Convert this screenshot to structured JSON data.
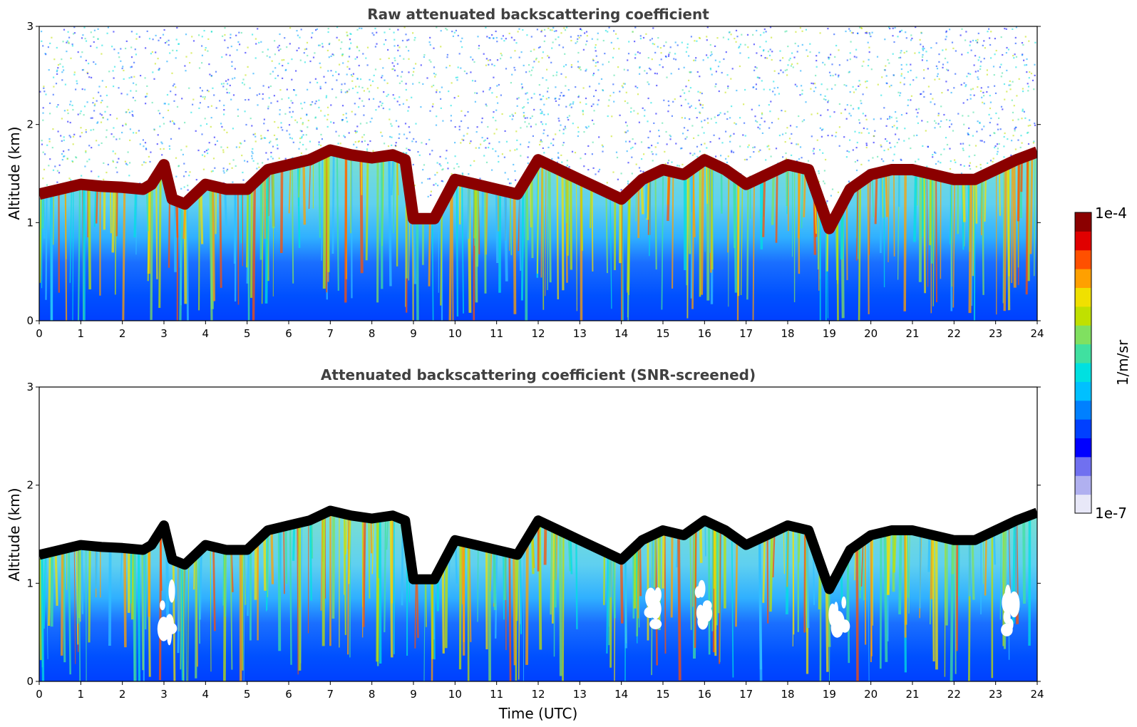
{
  "chart_data": [
    {
      "type": "heatmap",
      "title": "Raw attenuated backscattering coefficient",
      "xlabel": "",
      "ylabel": "Altitude (km)",
      "xlim": [
        0,
        24
      ],
      "ylim": [
        0,
        3
      ],
      "xticks": [
        "0",
        "1",
        "2",
        "3",
        "4",
        "5",
        "6",
        "7",
        "8",
        "9",
        "10",
        "11",
        "12",
        "13",
        "14",
        "15",
        "16",
        "17",
        "18",
        "19",
        "20",
        "21",
        "22",
        "23",
        "24"
      ],
      "yticks": [
        "0",
        "1",
        "2",
        "3"
      ],
      "screened": false,
      "layer_top_km": {
        "x": [
          0,
          0.5,
          1,
          1.5,
          2,
          2.5,
          2.7,
          3.0,
          3.2,
          3.5,
          4,
          4.5,
          5,
          5.5,
          6,
          6.5,
          7,
          7.5,
          8,
          8.5,
          8.8,
          9,
          9.5,
          10,
          10.5,
          11,
          11.5,
          12,
          12.5,
          13,
          13.5,
          14,
          14.5,
          15,
          15.5,
          16,
          16.5,
          17,
          17.5,
          18,
          18.5,
          19,
          19.5,
          20,
          20.5,
          21,
          21.5,
          22,
          22.5,
          23,
          23.5,
          24
        ],
        "y": [
          1.25,
          1.3,
          1.35,
          1.33,
          1.32,
          1.3,
          1.35,
          1.55,
          1.2,
          1.15,
          1.35,
          1.3,
          1.3,
          1.5,
          1.55,
          1.6,
          1.7,
          1.65,
          1.62,
          1.65,
          1.6,
          1.0,
          1.0,
          1.4,
          1.35,
          1.3,
          1.25,
          1.6,
          1.5,
          1.4,
          1.3,
          1.2,
          1.4,
          1.5,
          1.45,
          1.6,
          1.5,
          1.35,
          1.45,
          1.55,
          1.5,
          0.9,
          1.3,
          1.45,
          1.5,
          1.5,
          1.45,
          1.4,
          1.4,
          1.5,
          1.6,
          1.68
        ]
      }
    },
    {
      "type": "heatmap",
      "title": "Attenuated backscattering coefficient (SNR-screened)",
      "xlabel": "Time (UTC)",
      "ylabel": "Altitude (km)",
      "xlim": [
        0,
        24
      ],
      "ylim": [
        0,
        3
      ],
      "xticks": [
        "0",
        "1",
        "2",
        "3",
        "4",
        "5",
        "6",
        "7",
        "8",
        "9",
        "10",
        "11",
        "12",
        "13",
        "14",
        "15",
        "16",
        "17",
        "18",
        "19",
        "20",
        "21",
        "22",
        "23",
        "24"
      ],
      "yticks": [
        "0",
        "1",
        "2",
        "3"
      ],
      "screened": true,
      "layer_top_km": {
        "x": [
          0,
          0.5,
          1,
          1.5,
          2,
          2.5,
          2.7,
          3.0,
          3.2,
          3.5,
          4,
          4.5,
          5,
          5.5,
          6,
          6.5,
          7,
          7.5,
          8,
          8.5,
          8.8,
          9,
          9.5,
          10,
          10.5,
          11,
          11.5,
          12,
          12.5,
          13,
          13.5,
          14,
          14.5,
          15,
          15.5,
          16,
          16.5,
          17,
          17.5,
          18,
          18.5,
          19,
          19.5,
          20,
          20.5,
          21,
          21.5,
          22,
          22.5,
          23,
          23.5,
          24
        ],
        "y": [
          1.25,
          1.3,
          1.35,
          1.33,
          1.32,
          1.3,
          1.35,
          1.55,
          1.2,
          1.15,
          1.35,
          1.3,
          1.3,
          1.5,
          1.55,
          1.6,
          1.7,
          1.65,
          1.62,
          1.65,
          1.6,
          1.0,
          1.0,
          1.4,
          1.35,
          1.3,
          1.25,
          1.6,
          1.5,
          1.4,
          1.3,
          1.2,
          1.4,
          1.5,
          1.45,
          1.6,
          1.5,
          1.35,
          1.45,
          1.55,
          1.5,
          0.9,
          1.3,
          1.45,
          1.5,
          1.5,
          1.45,
          1.4,
          1.4,
          1.5,
          1.6,
          1.68
        ]
      }
    }
  ],
  "colorbar": {
    "label": "1/m/sr",
    "max_label": "1e-4",
    "min_label": "1e-7",
    "colors": [
      "#e8e8f8",
      "#b0b0f0",
      "#7070f0",
      "#0000ff",
      "#0040ff",
      "#0080ff",
      "#00c0ff",
      "#00e0e0",
      "#40e0a0",
      "#80e060",
      "#c0e000",
      "#f0e000",
      "#ffa000",
      "#ff5000",
      "#e00000",
      "#8b0000"
    ]
  }
}
